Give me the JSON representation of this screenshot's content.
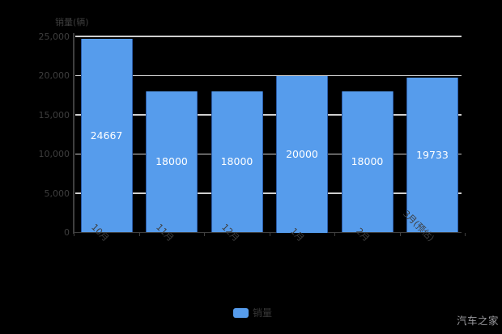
{
  "watermark": "汽车之家",
  "chart_data": {
    "type": "bar",
    "title": "",
    "y_axis_title": "销量(辆)",
    "categories": [
      "10月",
      "11月",
      "12月",
      "1月",
      "2月",
      "3月(预估)"
    ],
    "values": [
      24667,
      18000,
      18000,
      20000,
      18000,
      19733
    ],
    "value_labels": [
      "24667",
      "18000",
      "18000",
      "20000",
      "18000",
      "19733"
    ],
    "y_tick_labels": [
      "25,000",
      "20,000",
      "15,000",
      "10,000",
      "5,000",
      "0"
    ],
    "ylim": [
      0,
      25000
    ],
    "y_tick_step": 5000,
    "xlabel": "",
    "ylabel": "销量(辆)",
    "grid": true,
    "legend": "销量",
    "legend_position": "bottom-center",
    "colors": {
      "bar_fill": "#569CEC",
      "bar_edge": "#2b5ca8",
      "bar_value_text": "#ffffff",
      "gridline": "#cfcfcf",
      "axis_line": "#3f3f3f",
      "axis_text": "#3e3e3e",
      "legend_text": "#383838",
      "watermark_text": "#9a9a9e",
      "background": "#000000"
    }
  }
}
